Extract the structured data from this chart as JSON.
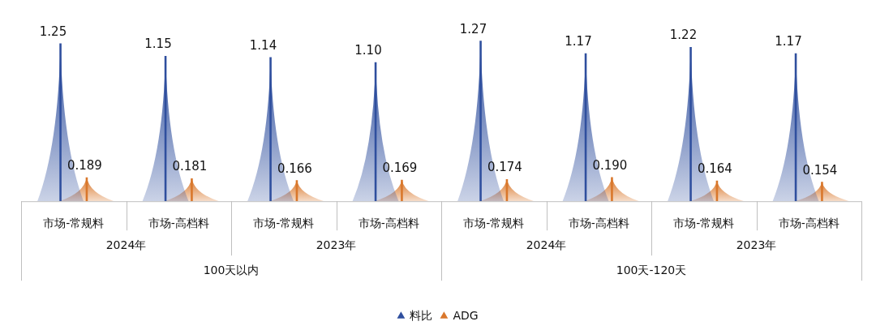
{
  "chart_data": {
    "type": "bar",
    "categories": [
      "市场-常规料",
      "市场-高档料",
      "市场-常规料",
      "市场-高档料",
      "市场-常规料",
      "市场-高档料",
      "市场-常规料",
      "市场-高档料"
    ],
    "annotations": [
      "2024年",
      "2023年",
      "2024年",
      "2023年",
      "100天以内",
      "100天-120天"
    ],
    "series": [
      {
        "name": "料比",
        "color": "#2f4f9e",
        "values": [
          1.25,
          1.15,
          1.14,
          1.1,
          1.27,
          1.17,
          1.22,
          1.17
        ],
        "value_labels": [
          "1.25",
          "1.15",
          "1.14",
          "1.10",
          "1.27",
          "1.17",
          "1.22",
          "1.17"
        ]
      },
      {
        "name": "ADG",
        "color": "#d9772b",
        "values": [
          0.189,
          0.181,
          0.166,
          0.169,
          0.174,
          0.19,
          0.164,
          0.154
        ],
        "value_labels": [
          "0.189",
          "0.181",
          "0.166",
          "0.169",
          "0.174",
          "0.190",
          "0.164",
          "0.154"
        ]
      }
    ],
    "legend": "bottom"
  }
}
